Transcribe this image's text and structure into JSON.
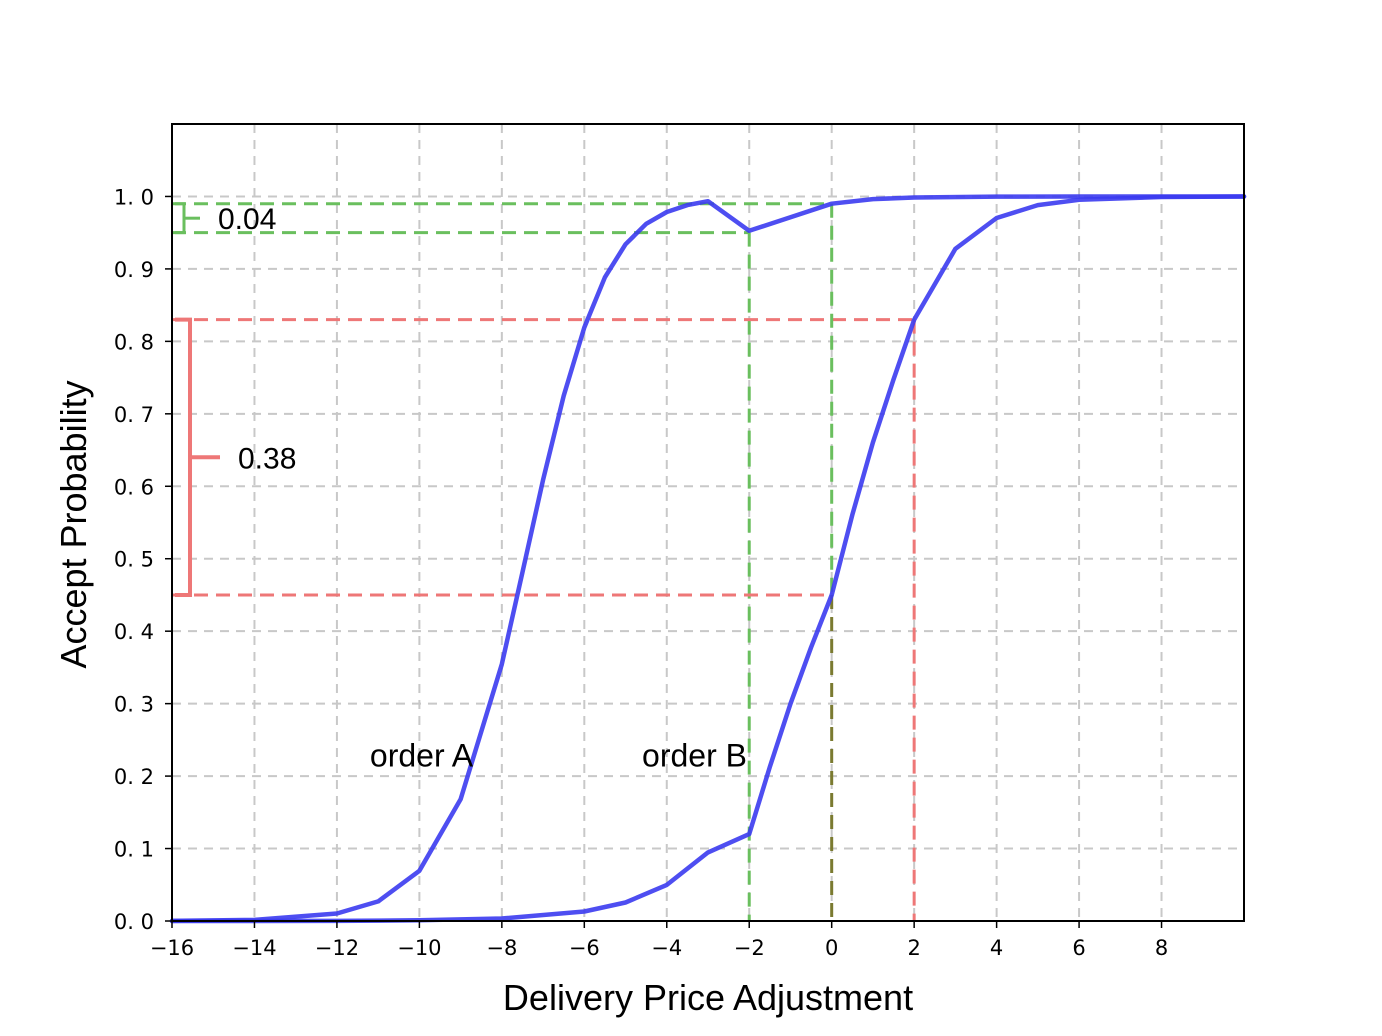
{
  "chart_data": {
    "type": "line",
    "xlabel": "Delivery Price Adjustment",
    "ylabel": "Accept Probability",
    "xlim": [
      -16,
      10
    ],
    "ylim": [
      0,
      1.1
    ],
    "xticks": [
      -16,
      -14,
      -12,
      -10,
      -8,
      -6,
      -4,
      -2,
      0,
      2,
      4,
      6,
      8
    ],
    "xtick_labels": [
      "−16",
      "−14",
      "−12",
      "−10",
      "−8",
      "−6",
      "−4",
      "−2",
      "0",
      "2",
      "4",
      "6",
      "8"
    ],
    "yticks": [
      0.0,
      0.1,
      0.2,
      0.3,
      0.4,
      0.5,
      0.6,
      0.7,
      0.8,
      0.9,
      1.0
    ],
    "ytick_labels": [
      "0. 0",
      "0. 1",
      "0. 2",
      "0. 3",
      "0. 4",
      "0. 5",
      "0. 6",
      "0. 7",
      "0. 8",
      "0. 9",
      "1. 0"
    ],
    "grid": true,
    "series": [
      {
        "name": "order A",
        "color": "#3b3bf0",
        "x": [
          -16,
          -14,
          -12,
          -11,
          -10,
          -9,
          -8,
          -7.5,
          -7,
          -6.5,
          -6,
          -5.5,
          -5,
          -4.5,
          -4,
          -3.5,
          -3,
          -2,
          -1,
          0,
          1,
          2,
          4,
          6,
          8,
          10
        ],
        "y": [
          0.0002,
          0.0015,
          0.0103,
          0.0271,
          0.0693,
          0.168,
          0.3543,
          0.4815,
          0.6091,
          0.7249,
          0.8192,
          0.8884,
          0.934,
          0.9622,
          0.9786,
          0.9881,
          0.9934,
          0.9526,
          0.9714,
          0.99,
          0.9963,
          0.9986,
          0.9998,
          1.0,
          1.0,
          1.0
        ]
      },
      {
        "name": "order B",
        "color": "#3b3bf0",
        "x": [
          -16,
          -12,
          -10,
          -8,
          -6,
          -5,
          -4,
          -3,
          -2,
          -1.5,
          -1,
          -0.5,
          0,
          0.5,
          1,
          1.5,
          2,
          3,
          4,
          5,
          6,
          8,
          10
        ],
        "y": [
          0.0,
          0.0002,
          0.0009,
          0.0034,
          0.0131,
          0.0256,
          0.0498,
          0.0947,
          0.12,
          0.2125,
          0.2999,
          0.3778,
          0.45,
          0.5605,
          0.6604,
          0.7474,
          0.83,
          0.9278,
          0.9703,
          0.9881,
          0.9954,
          0.9993,
          0.9999
        ]
      }
    ],
    "annotations": {
      "green": {
        "color": "#6abf5e",
        "y_high": 0.99,
        "y_low": 0.95,
        "x_high": 0,
        "x_low": -2,
        "label": "0.04"
      },
      "red": {
        "color": "#ee7777",
        "y_high": 0.83,
        "y_low": 0.45,
        "x_high": 2,
        "x_low": 0,
        "label": "0.38"
      },
      "curve_labels": [
        {
          "text": "order A",
          "x": -11.2,
          "y": 0.22
        },
        {
          "text": "order B",
          "x": -4.6,
          "y": 0.22
        }
      ]
    }
  }
}
